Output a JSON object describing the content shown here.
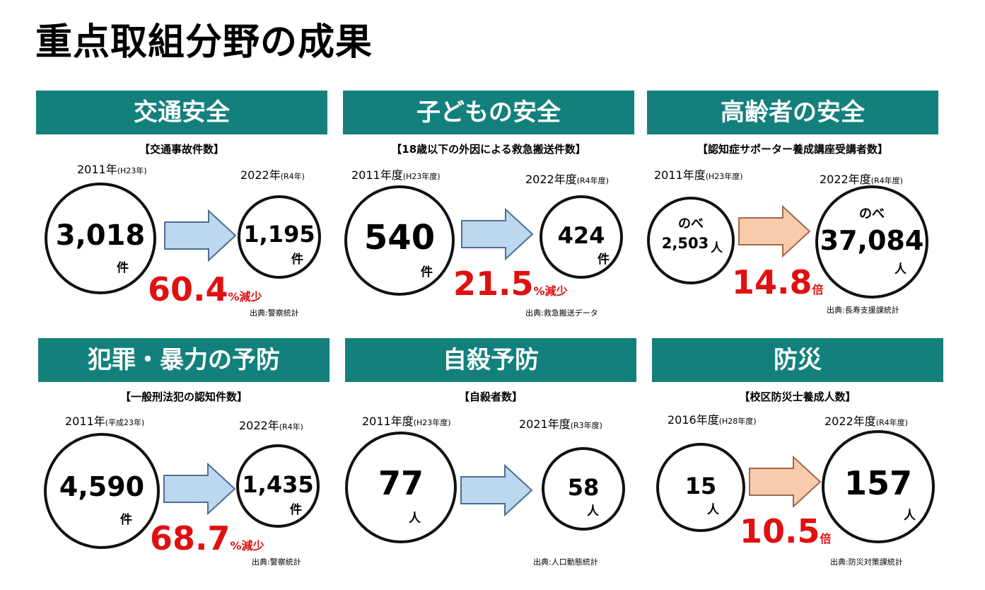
{
  "page": {
    "title": "重点取組分野の成果"
  },
  "colors": {
    "header_bg": "#13807c",
    "result_red": "#e11010",
    "decrease_arrow": "#bdd7ee",
    "increase_arrow": "#f8cbad"
  },
  "panels": [
    {
      "title": "交通安全",
      "metric": "【交通事故件数】",
      "from": {
        "year": "2011年",
        "note": "(H23年)",
        "prefix": "",
        "value": "3,018",
        "unit": "件"
      },
      "to": {
        "year": "2022年",
        "note": "(R4年)",
        "prefix": "",
        "value": "1,195",
        "unit": "件"
      },
      "change": {
        "value": "60.4",
        "suffix": "%減少"
      },
      "arrow_icon": "decrease-arrow-icon",
      "source": "出典:警察統計"
    },
    {
      "title": "子どもの安全",
      "metric": "【18歳以下の外因による救急搬送件数】",
      "from": {
        "year": "2011年度",
        "note": "(H23年度)",
        "prefix": "",
        "value": "540",
        "unit": "件"
      },
      "to": {
        "year": "2022年度",
        "note": "(R4年度)",
        "prefix": "",
        "value": "424",
        "unit": "件"
      },
      "change": {
        "value": "21.5",
        "suffix": "%減少"
      },
      "arrow_icon": "decrease-arrow-icon",
      "source": "出典:救急搬送データ"
    },
    {
      "title": "高齢者の安全",
      "metric": "【認知症サポーター養成講座受講者数】",
      "from": {
        "year": "2011年度",
        "note": "(H23年度)",
        "prefix": "のべ",
        "value": "2,503",
        "unit": "人"
      },
      "to": {
        "year": "2022年度",
        "note": "(R4年度)",
        "prefix": "のべ",
        "value": "37,084",
        "unit": "人"
      },
      "change": {
        "value": "14.8",
        "suffix": "倍"
      },
      "arrow_icon": "increase-arrow-icon",
      "source": "出典:長寿支援課統計"
    },
    {
      "title": "犯罪・暴力の予防",
      "metric": "【一般刑法犯の認知件数】",
      "from": {
        "year": "2011年",
        "note": "(平成23年)",
        "prefix": "",
        "value": "4,590",
        "unit": "件"
      },
      "to": {
        "year": "2022年",
        "note": "(R4年)",
        "prefix": "",
        "value": "1,435",
        "unit": "件"
      },
      "change": {
        "value": "68.7",
        "suffix": "%減少"
      },
      "arrow_icon": "decrease-arrow-icon",
      "source": "出典:警察統計"
    },
    {
      "title": "自殺予防",
      "metric": "【自殺者数】",
      "from": {
        "year": "2011年度",
        "note": "(H23年度)",
        "prefix": "",
        "value": "77",
        "unit": "人"
      },
      "to": {
        "year": "2021年度",
        "note": "(R3年度)",
        "prefix": "",
        "value": "58",
        "unit": "人"
      },
      "change": {
        "value": "",
        "suffix": ""
      },
      "arrow_icon": "decrease-arrow-icon",
      "source": "出典:人口動態統計"
    },
    {
      "title": "防災",
      "metric": "【校区防災士養成人数】",
      "from": {
        "year": "2016年度",
        "note": "(H28年度)",
        "prefix": "",
        "value": "15",
        "unit": "人"
      },
      "to": {
        "year": "2022年度",
        "note": "(R4年度)",
        "prefix": "",
        "value": "157",
        "unit": "人"
      },
      "change": {
        "value": "10.5",
        "suffix": "倍"
      },
      "arrow_icon": "increase-arrow-icon",
      "source": "出典:防災対策課統計"
    }
  ]
}
